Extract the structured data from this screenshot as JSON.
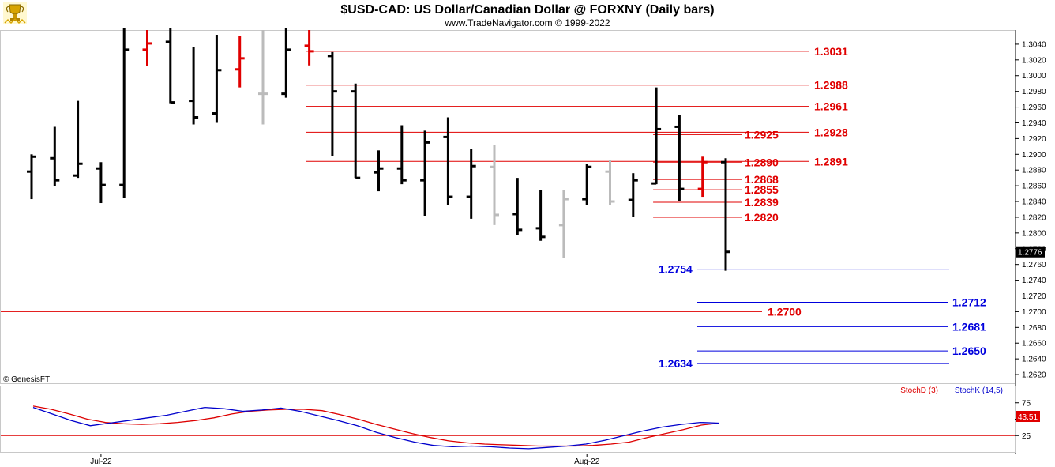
{
  "title": "$USD-CAD:  US Dollar/Canadian Dollar @ FORXNY  (Daily bars)",
  "subtitle": "www.TradeNavigator.com © 1999-2022",
  "copyright": "© GenesisFT",
  "logo_icon": "trophy-icon",
  "colors": {
    "down": "#000000",
    "up": "#e00000",
    "neutral": "#bbbbbb",
    "resistance": "#e00000",
    "support": "#0000dd",
    "stochK": "#0000cc",
    "stochD": "#dd0000"
  },
  "chart_data": [
    {
      "type": "ohlc",
      "title": "$USD-CAD:  US Dollar/Canadian Dollar @ FORXNY  (Daily bars)",
      "ylim": [
        1.2608,
        1.3058
      ],
      "y_ticks": [
        "1.3040",
        "1.3020",
        "1.3000",
        "1.2980",
        "1.2960",
        "1.2940",
        "1.2920",
        "1.2900",
        "1.2880",
        "1.2860",
        "1.2840",
        "1.2820",
        "1.2800",
        "1.2780",
        "1.2760",
        "1.2740",
        "1.2720",
        "1.2700",
        "1.2680",
        "1.2660",
        "1.2640",
        "1.2620"
      ],
      "y_tick_values": [
        1.304,
        1.302,
        1.3,
        1.298,
        1.296,
        1.294,
        1.292,
        1.29,
        1.288,
        1.286,
        1.284,
        1.282,
        1.28,
        1.278,
        1.276,
        1.274,
        1.272,
        1.27,
        1.268,
        1.266,
        1.264,
        1.262
      ],
      "x_labels": [
        {
          "label": "Jul-22",
          "index": 3
        },
        {
          "label": "Aug-22",
          "index": 24
        }
      ],
      "last_price": "1.2776",
      "bars": [
        {
          "o": 1.2878,
          "h": 1.29,
          "l": 1.2843,
          "c": 1.2897,
          "color": "down"
        },
        {
          "o": 1.2895,
          "h": 1.2935,
          "l": 1.286,
          "c": 1.2867,
          "color": "down"
        },
        {
          "o": 1.2873,
          "h": 1.2968,
          "l": 1.287,
          "c": 1.2888,
          "color": "down"
        },
        {
          "o": 1.2882,
          "h": 1.289,
          "l": 1.2838,
          "c": 1.2861,
          "color": "down"
        },
        {
          "o": 1.2861,
          "h": 1.306,
          "l": 1.2845,
          "c": 1.3033,
          "color": "down"
        },
        {
          "o": 1.3033,
          "h": 1.3058,
          "l": 1.3012,
          "c": 1.3041,
          "color": "up"
        },
        {
          "o": 1.3043,
          "h": 1.306,
          "l": 1.2965,
          "c": 1.2966,
          "color": "down"
        },
        {
          "o": 1.2968,
          "h": 1.3036,
          "l": 1.2938,
          "c": 1.2947,
          "color": "down"
        },
        {
          "o": 1.2952,
          "h": 1.3052,
          "l": 1.294,
          "c": 1.3007,
          "color": "down"
        },
        {
          "o": 1.3008,
          "h": 1.305,
          "l": 1.2985,
          "c": 1.3022,
          "color": "up"
        },
        {
          "o": 1.2977,
          "h": 1.3058,
          "l": 1.2938,
          "c": 1.2977,
          "color": "neutral"
        },
        {
          "o": 1.2977,
          "h": 1.306,
          "l": 1.2972,
          "c": 1.3033,
          "color": "down"
        },
        {
          "o": 1.3038,
          "h": 1.3058,
          "l": 1.3013,
          "c": 1.3031,
          "color": "up"
        },
        {
          "o": 1.3025,
          "h": 1.303,
          "l": 1.2898,
          "c": 1.298,
          "color": "down"
        },
        {
          "o": 1.298,
          "h": 1.299,
          "l": 1.287,
          "c": 1.287,
          "color": "down"
        },
        {
          "o": 1.2877,
          "h": 1.2905,
          "l": 1.2853,
          "c": 1.2882,
          "color": "down"
        },
        {
          "o": 1.2882,
          "h": 1.2937,
          "l": 1.2862,
          "c": 1.2867,
          "color": "down"
        },
        {
          "o": 1.2867,
          "h": 1.293,
          "l": 1.2822,
          "c": 1.2915,
          "color": "down"
        },
        {
          "o": 1.2922,
          "h": 1.2947,
          "l": 1.2835,
          "c": 1.2846,
          "color": "down"
        },
        {
          "o": 1.2846,
          "h": 1.2907,
          "l": 1.2818,
          "c": 1.2885,
          "color": "down"
        },
        {
          "o": 1.2884,
          "h": 1.2912,
          "l": 1.281,
          "c": 1.2823,
          "color": "neutral"
        },
        {
          "o": 1.2824,
          "h": 1.287,
          "l": 1.2797,
          "c": 1.2804,
          "color": "down"
        },
        {
          "o": 1.2806,
          "h": 1.2855,
          "l": 1.279,
          "c": 1.2795,
          "color": "down"
        },
        {
          "o": 1.281,
          "h": 1.2855,
          "l": 1.2768,
          "c": 1.2843,
          "color": "neutral"
        },
        {
          "o": 1.2843,
          "h": 1.2888,
          "l": 1.2835,
          "c": 1.2884,
          "color": "down"
        },
        {
          "o": 1.2878,
          "h": 1.2893,
          "l": 1.2835,
          "c": 1.284,
          "color": "neutral"
        },
        {
          "o": 1.2842,
          "h": 1.2876,
          "l": 1.282,
          "c": 1.2867,
          "color": "down"
        },
        {
          "o": 1.2863,
          "h": 1.2985,
          "l": 1.2862,
          "c": 1.2932,
          "color": "down"
        },
        {
          "o": 1.2935,
          "h": 1.295,
          "l": 1.284,
          "c": 1.2856,
          "color": "down"
        },
        {
          "o": 1.2856,
          "h": 1.2897,
          "l": 1.2846,
          "c": 1.289,
          "color": "up"
        },
        {
          "o": 1.289,
          "h": 1.2895,
          "l": 1.2752,
          "c": 1.2776,
          "color": "down"
        }
      ],
      "resistance_levels": [
        {
          "value": 1.3031,
          "label": "1.3031",
          "start_index": 12,
          "end": "right"
        },
        {
          "value": 1.2988,
          "label": "1.2988",
          "start_index": 12,
          "end": "right"
        },
        {
          "value": 1.2961,
          "label": "1.2961",
          "start_index": 12,
          "end": "right"
        },
        {
          "value": 1.2928,
          "label": "1.2928",
          "start_index": 12,
          "end": "right"
        },
        {
          "value": 1.2925,
          "label": "1.2925",
          "start_index": 27,
          "end": "mid"
        },
        {
          "value": 1.2891,
          "label": "1.2891",
          "start_index": 12,
          "end": "right"
        },
        {
          "value": 1.289,
          "label": "1.2890",
          "start_index": 27,
          "end": "mid"
        },
        {
          "value": 1.2868,
          "label": "1.2868",
          "start_index": 27,
          "end": "mid"
        },
        {
          "value": 1.2855,
          "label": "1.2855",
          "start_index": 27,
          "end": "mid"
        },
        {
          "value": 1.2839,
          "label": "1.2839",
          "start_index": 27,
          "end": "mid"
        },
        {
          "value": 1.282,
          "label": "1.2820",
          "start_index": 27,
          "end": "mid"
        },
        {
          "value": 1.27,
          "label": "1.2700",
          "start_index": 0,
          "end": "mid"
        }
      ],
      "support_levels": [
        {
          "value": 1.2754,
          "label": "1.2754",
          "label_side": "left"
        },
        {
          "value": 1.2712,
          "label": "1.2712",
          "label_side": "right"
        },
        {
          "value": 1.2681,
          "label": "1.2681",
          "label_side": "right"
        },
        {
          "value": 1.265,
          "label": "1.2650",
          "label_side": "right"
        },
        {
          "value": 1.2634,
          "label": "1.2634",
          "label_side": "left"
        }
      ]
    },
    {
      "type": "line",
      "title": "",
      "ylim": [
        0,
        100
      ],
      "y_ticks": [
        "75",
        "50",
        "25"
      ],
      "y_tick_values": [
        75,
        50,
        25
      ],
      "hline": 25,
      "last_value": "43.51",
      "series": [
        {
          "name": "StochD (3)",
          "color": "#dd0000",
          "values": [
            70,
            65,
            58,
            50,
            45,
            43,
            42,
            43,
            45,
            48,
            52,
            58,
            62,
            64,
            65,
            65,
            63,
            57,
            50,
            42,
            35,
            28,
            22,
            17,
            14,
            12,
            11,
            10,
            9,
            9,
            9,
            10,
            12,
            15,
            22,
            28,
            34,
            41,
            44
          ]
        },
        {
          "name": "StochK (14,5)",
          "color": "#0000cc",
          "values": [
            68,
            58,
            48,
            40,
            44,
            48,
            52,
            56,
            62,
            68,
            66,
            62,
            64,
            67,
            62,
            55,
            48,
            40,
            30,
            22,
            15,
            10,
            8,
            9,
            8,
            6,
            5,
            7,
            9,
            12,
            18,
            25,
            32,
            38,
            42,
            45,
            44
          ]
        }
      ]
    }
  ]
}
